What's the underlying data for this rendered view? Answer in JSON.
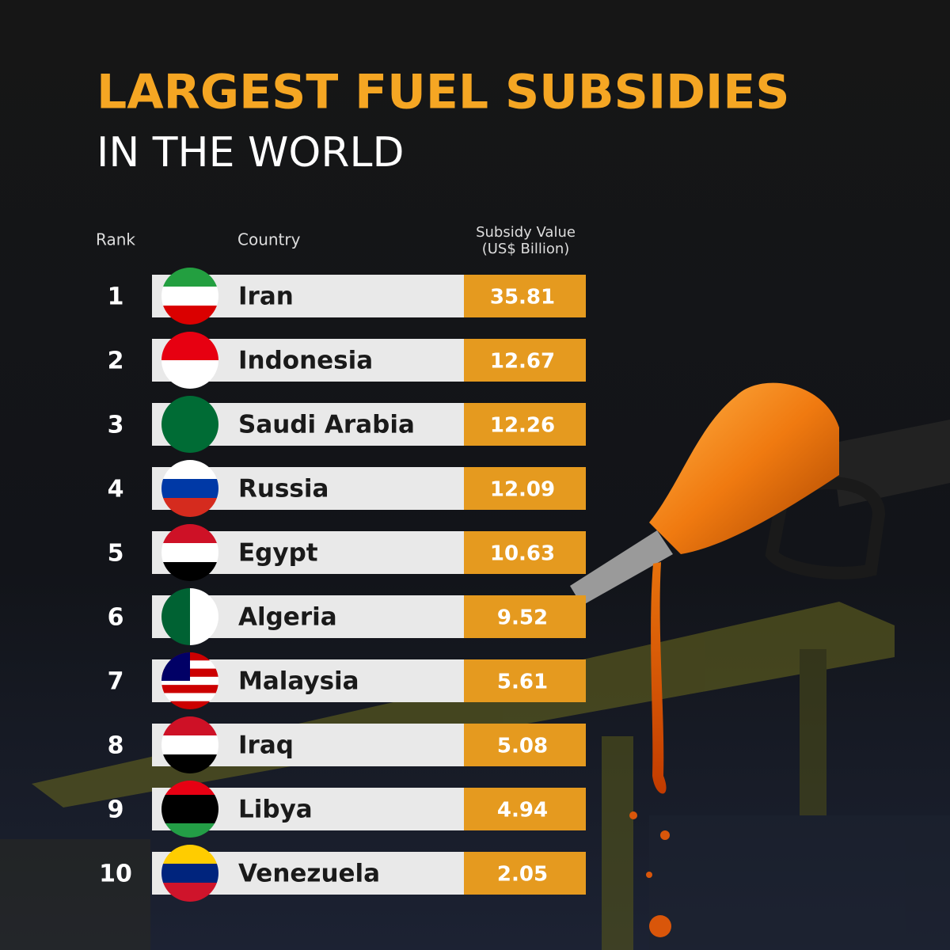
{
  "header": {
    "title": "LARGEST FUEL SUBSIDIES",
    "subtitle": "IN THE WORLD"
  },
  "table": {
    "columns": [
      "Rank",
      "Country",
      [
        "Subsidy Value",
        "(US$ Billion)"
      ]
    ],
    "rows": [
      [
        1,
        "Iran",
        35.81
      ],
      [
        2,
        "Indonesia",
        12.67
      ],
      [
        3,
        "Saudi Arabia",
        12.26
      ],
      [
        4,
        "Russia",
        12.09
      ],
      [
        5,
        "Egypt",
        10.63
      ],
      [
        6,
        "Algeria",
        9.52
      ],
      [
        7,
        "Malaysia",
        5.61
      ],
      [
        8,
        "Iraq",
        5.08
      ],
      [
        9,
        "Libya",
        4.94
      ],
      [
        10,
        "Venezuela",
        2.05
      ]
    ]
  }
}
